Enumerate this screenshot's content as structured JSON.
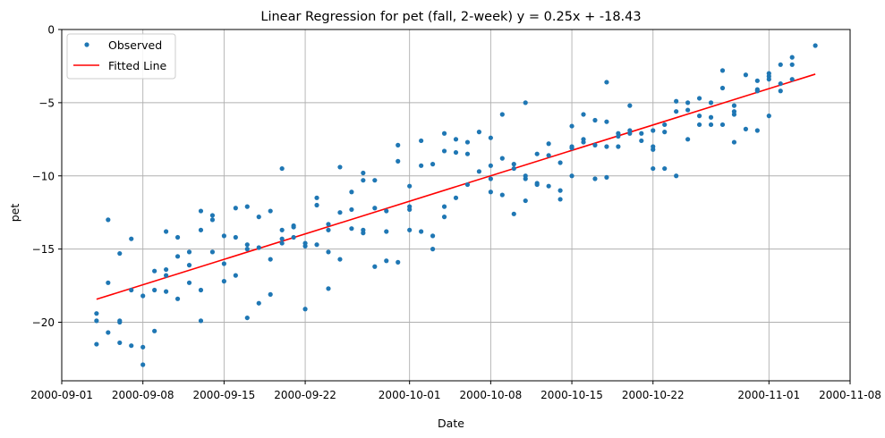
{
  "chart_data": {
    "type": "scatter",
    "title": "Linear Regression for pet (fall, 2-week) y = 0.25x + -18.43",
    "xlabel": "Date",
    "ylabel": "pet",
    "xlim": [
      "2000-09-01",
      "2000-11-08"
    ],
    "ylim": [
      -24.0,
      0.0
    ],
    "x_ticks": [
      "2000-09-01",
      "2000-09-08",
      "2000-09-15",
      "2000-09-22",
      "2000-10-01",
      "2000-10-08",
      "2000-10-15",
      "2000-10-22",
      "2000-11-01",
      "2000-11-08"
    ],
    "y_ticks": [
      -20,
      -15,
      -10,
      -5,
      0
    ],
    "y_tick_labels": [
      "−20",
      "−15",
      "−10",
      "−5",
      "0"
    ],
    "grid": true,
    "legend_position": "top-left",
    "series": [
      {
        "name": "Observed",
        "kind": "points",
        "color": "#1f77b4",
        "points": [
          {
            "x": "2000-09-04",
            "y": -19.4
          },
          {
            "x": "2000-09-04",
            "y": -19.9
          },
          {
            "x": "2000-09-04",
            "y": -21.5
          },
          {
            "x": "2000-09-05",
            "y": -13.0
          },
          {
            "x": "2000-09-05",
            "y": -17.3
          },
          {
            "x": "2000-09-05",
            "y": -20.7
          },
          {
            "x": "2000-09-06",
            "y": -15.3
          },
          {
            "x": "2000-09-06",
            "y": -19.9
          },
          {
            "x": "2000-09-06",
            "y": -20.0
          },
          {
            "x": "2000-09-06",
            "y": -21.4
          },
          {
            "x": "2000-09-07",
            "y": -14.3
          },
          {
            "x": "2000-09-07",
            "y": -17.8
          },
          {
            "x": "2000-09-07",
            "y": -21.6
          },
          {
            "x": "2000-09-08",
            "y": -18.2
          },
          {
            "x": "2000-09-08",
            "y": -21.7
          },
          {
            "x": "2000-09-08",
            "y": -22.9
          },
          {
            "x": "2000-09-09",
            "y": -16.5
          },
          {
            "x": "2000-09-09",
            "y": -17.8
          },
          {
            "x": "2000-09-09",
            "y": -20.6
          },
          {
            "x": "2000-09-10",
            "y": -13.8
          },
          {
            "x": "2000-09-10",
            "y": -16.4
          },
          {
            "x": "2000-09-10",
            "y": -16.8
          },
          {
            "x": "2000-09-10",
            "y": -17.9
          },
          {
            "x": "2000-09-11",
            "y": -14.2
          },
          {
            "x": "2000-09-11",
            "y": -15.5
          },
          {
            "x": "2000-09-11",
            "y": -18.4
          },
          {
            "x": "2000-09-12",
            "y": -15.2
          },
          {
            "x": "2000-09-12",
            "y": -16.1
          },
          {
            "x": "2000-09-12",
            "y": -17.3
          },
          {
            "x": "2000-09-13",
            "y": -12.4
          },
          {
            "x": "2000-09-13",
            "y": -13.7
          },
          {
            "x": "2000-09-13",
            "y": -17.8
          },
          {
            "x": "2000-09-13",
            "y": -19.9
          },
          {
            "x": "2000-09-14",
            "y": -12.7
          },
          {
            "x": "2000-09-14",
            "y": -13.0
          },
          {
            "x": "2000-09-14",
            "y": -15.2
          },
          {
            "x": "2000-09-15",
            "y": -14.1
          },
          {
            "x": "2000-09-15",
            "y": -16.0
          },
          {
            "x": "2000-09-15",
            "y": -17.2
          },
          {
            "x": "2000-09-16",
            "y": -12.2
          },
          {
            "x": "2000-09-16",
            "y": -14.2
          },
          {
            "x": "2000-09-16",
            "y": -16.8
          },
          {
            "x": "2000-09-17",
            "y": -12.1
          },
          {
            "x": "2000-09-17",
            "y": -14.7
          },
          {
            "x": "2000-09-17",
            "y": -15.0
          },
          {
            "x": "2000-09-17",
            "y": -19.7
          },
          {
            "x": "2000-09-18",
            "y": -12.8
          },
          {
            "x": "2000-09-18",
            "y": -14.9
          },
          {
            "x": "2000-09-18",
            "y": -18.7
          },
          {
            "x": "2000-09-19",
            "y": -12.4
          },
          {
            "x": "2000-09-19",
            "y": -15.7
          },
          {
            "x": "2000-09-19",
            "y": -18.1
          },
          {
            "x": "2000-09-20",
            "y": -9.5
          },
          {
            "x": "2000-09-20",
            "y": -13.7
          },
          {
            "x": "2000-09-20",
            "y": -14.3
          },
          {
            "x": "2000-09-20",
            "y": -14.6
          },
          {
            "x": "2000-09-21",
            "y": -13.4
          },
          {
            "x": "2000-09-21",
            "y": -13.5
          },
          {
            "x": "2000-09-21",
            "y": -14.2
          },
          {
            "x": "2000-09-22",
            "y": -14.6
          },
          {
            "x": "2000-09-22",
            "y": -14.8
          },
          {
            "x": "2000-09-22",
            "y": -19.1
          },
          {
            "x": "2000-09-23",
            "y": -11.5
          },
          {
            "x": "2000-09-23",
            "y": -12.0
          },
          {
            "x": "2000-09-23",
            "y": -14.7
          },
          {
            "x": "2000-09-24",
            "y": -13.3
          },
          {
            "x": "2000-09-24",
            "y": -13.7
          },
          {
            "x": "2000-09-24",
            "y": -15.2
          },
          {
            "x": "2000-09-24",
            "y": -17.7
          },
          {
            "x": "2000-09-25",
            "y": -9.4
          },
          {
            "x": "2000-09-25",
            "y": -12.5
          },
          {
            "x": "2000-09-25",
            "y": -15.7
          },
          {
            "x": "2000-09-26",
            "y": -11.1
          },
          {
            "x": "2000-09-26",
            "y": -12.3
          },
          {
            "x": "2000-09-26",
            "y": -13.6
          },
          {
            "x": "2000-09-27",
            "y": -9.8
          },
          {
            "x": "2000-09-27",
            "y": -10.3
          },
          {
            "x": "2000-09-27",
            "y": -13.7
          },
          {
            "x": "2000-09-27",
            "y": -13.9
          },
          {
            "x": "2000-09-28",
            "y": -10.3
          },
          {
            "x": "2000-09-28",
            "y": -12.2
          },
          {
            "x": "2000-09-28",
            "y": -16.2
          },
          {
            "x": "2000-09-29",
            "y": -12.4
          },
          {
            "x": "2000-09-29",
            "y": -13.8
          },
          {
            "x": "2000-09-29",
            "y": -15.8
          },
          {
            "x": "2000-09-30",
            "y": -7.9
          },
          {
            "x": "2000-09-30",
            "y": -9.0
          },
          {
            "x": "2000-09-30",
            "y": -15.9
          },
          {
            "x": "2000-10-01",
            "y": -10.7
          },
          {
            "x": "2000-10-01",
            "y": -12.1
          },
          {
            "x": "2000-10-01",
            "y": -12.3
          },
          {
            "x": "2000-10-01",
            "y": -13.7
          },
          {
            "x": "2000-10-02",
            "y": -7.6
          },
          {
            "x": "2000-10-02",
            "y": -9.3
          },
          {
            "x": "2000-10-02",
            "y": -13.8
          },
          {
            "x": "2000-10-03",
            "y": -9.2
          },
          {
            "x": "2000-10-03",
            "y": -14.1
          },
          {
            "x": "2000-10-03",
            "y": -15.0
          },
          {
            "x": "2000-10-04",
            "y": -7.1
          },
          {
            "x": "2000-10-04",
            "y": -8.3
          },
          {
            "x": "2000-10-04",
            "y": -12.1
          },
          {
            "x": "2000-10-04",
            "y": -12.8
          },
          {
            "x": "2000-10-05",
            "y": -7.5
          },
          {
            "x": "2000-10-05",
            "y": -8.4
          },
          {
            "x": "2000-10-05",
            "y": -11.5
          },
          {
            "x": "2000-10-06",
            "y": -7.7
          },
          {
            "x": "2000-10-06",
            "y": -8.5
          },
          {
            "x": "2000-10-06",
            "y": -10.6
          },
          {
            "x": "2000-10-07",
            "y": -7.0
          },
          {
            "x": "2000-10-07",
            "y": -9.7
          },
          {
            "x": "2000-10-08",
            "y": -7.4
          },
          {
            "x": "2000-10-08",
            "y": -9.3
          },
          {
            "x": "2000-10-08",
            "y": -10.2
          },
          {
            "x": "2000-10-08",
            "y": -11.1
          },
          {
            "x": "2000-10-09",
            "y": -5.8
          },
          {
            "x": "2000-10-09",
            "y": -8.8
          },
          {
            "x": "2000-10-09",
            "y": -11.3
          },
          {
            "x": "2000-10-10",
            "y": -9.2
          },
          {
            "x": "2000-10-10",
            "y": -9.5
          },
          {
            "x": "2000-10-10",
            "y": -12.6
          },
          {
            "x": "2000-10-11",
            "y": -5.0
          },
          {
            "x": "2000-10-11",
            "y": -10.0
          },
          {
            "x": "2000-10-11",
            "y": -10.2
          },
          {
            "x": "2000-10-11",
            "y": -11.7
          },
          {
            "x": "2000-10-12",
            "y": -8.5
          },
          {
            "x": "2000-10-12",
            "y": -10.5
          },
          {
            "x": "2000-10-12",
            "y": -10.6
          },
          {
            "x": "2000-10-13",
            "y": -7.8
          },
          {
            "x": "2000-10-13",
            "y": -8.6
          },
          {
            "x": "2000-10-13",
            "y": -10.7
          },
          {
            "x": "2000-10-14",
            "y": -9.1
          },
          {
            "x": "2000-10-14",
            "y": -11.0
          },
          {
            "x": "2000-10-14",
            "y": -11.6
          },
          {
            "x": "2000-10-15",
            "y": -6.6
          },
          {
            "x": "2000-10-15",
            "y": -8.0
          },
          {
            "x": "2000-10-15",
            "y": -8.1
          },
          {
            "x": "2000-10-15",
            "y": -10.0
          },
          {
            "x": "2000-10-16",
            "y": -5.8
          },
          {
            "x": "2000-10-16",
            "y": -7.5
          },
          {
            "x": "2000-10-16",
            "y": -7.7
          },
          {
            "x": "2000-10-17",
            "y": -6.2
          },
          {
            "x": "2000-10-17",
            "y": -7.9
          },
          {
            "x": "2000-10-17",
            "y": -10.2
          },
          {
            "x": "2000-10-18",
            "y": -3.6
          },
          {
            "x": "2000-10-18",
            "y": -6.3
          },
          {
            "x": "2000-10-18",
            "y": -8.0
          },
          {
            "x": "2000-10-18",
            "y": -10.1
          },
          {
            "x": "2000-10-19",
            "y": -7.1
          },
          {
            "x": "2000-10-19",
            "y": -7.3
          },
          {
            "x": "2000-10-19",
            "y": -8.0
          },
          {
            "x": "2000-10-20",
            "y": -5.2
          },
          {
            "x": "2000-10-20",
            "y": -6.9
          },
          {
            "x": "2000-10-20",
            "y": -7.1
          },
          {
            "x": "2000-10-21",
            "y": -7.1
          },
          {
            "x": "2000-10-21",
            "y": -7.6
          },
          {
            "x": "2000-10-22",
            "y": -6.9
          },
          {
            "x": "2000-10-22",
            "y": -8.0
          },
          {
            "x": "2000-10-22",
            "y": -8.2
          },
          {
            "x": "2000-10-22",
            "y": -9.5
          },
          {
            "x": "2000-10-23",
            "y": -6.5
          },
          {
            "x": "2000-10-23",
            "y": -7.0
          },
          {
            "x": "2000-10-23",
            "y": -9.5
          },
          {
            "x": "2000-10-24",
            "y": -4.9
          },
          {
            "x": "2000-10-24",
            "y": -5.6
          },
          {
            "x": "2000-10-24",
            "y": -10.0
          },
          {
            "x": "2000-10-25",
            "y": -5.0
          },
          {
            "x": "2000-10-25",
            "y": -5.5
          },
          {
            "x": "2000-10-25",
            "y": -7.5
          },
          {
            "x": "2000-10-26",
            "y": -4.7
          },
          {
            "x": "2000-10-26",
            "y": -5.9
          },
          {
            "x": "2000-10-26",
            "y": -6.5
          },
          {
            "x": "2000-10-27",
            "y": -5.0
          },
          {
            "x": "2000-10-27",
            "y": -6.0
          },
          {
            "x": "2000-10-27",
            "y": -6.5
          },
          {
            "x": "2000-10-28",
            "y": -2.8
          },
          {
            "x": "2000-10-28",
            "y": -4.0
          },
          {
            "x": "2000-10-28",
            "y": -6.5
          },
          {
            "x": "2000-10-29",
            "y": -5.2
          },
          {
            "x": "2000-10-29",
            "y": -5.6
          },
          {
            "x": "2000-10-29",
            "y": -5.8
          },
          {
            "x": "2000-10-29",
            "y": -7.7
          },
          {
            "x": "2000-10-30",
            "y": -3.1
          },
          {
            "x": "2000-10-30",
            "y": -6.8
          },
          {
            "x": "2000-10-31",
            "y": -3.5
          },
          {
            "x": "2000-10-31",
            "y": -4.1
          },
          {
            "x": "2000-10-31",
            "y": -4.2
          },
          {
            "x": "2000-10-31",
            "y": -6.9
          },
          {
            "x": "2000-11-01",
            "y": -3.0
          },
          {
            "x": "2000-11-01",
            "y": -3.2
          },
          {
            "x": "2000-11-01",
            "y": -3.4
          },
          {
            "x": "2000-11-01",
            "y": -5.9
          },
          {
            "x": "2000-11-02",
            "y": -2.4
          },
          {
            "x": "2000-11-02",
            "y": -3.7
          },
          {
            "x": "2000-11-02",
            "y": -4.2
          },
          {
            "x": "2000-11-03",
            "y": -1.9
          },
          {
            "x": "2000-11-03",
            "y": -2.4
          },
          {
            "x": "2000-11-03",
            "y": -3.4
          },
          {
            "x": "2000-11-05",
            "y": -1.1
          }
        ]
      },
      {
        "name": "Fitted Line",
        "kind": "line",
        "color": "#ff0000",
        "points": [
          {
            "x": "2000-09-04",
            "y": -18.43
          },
          {
            "x": "2000-11-05",
            "y": -3.05
          }
        ]
      }
    ]
  }
}
